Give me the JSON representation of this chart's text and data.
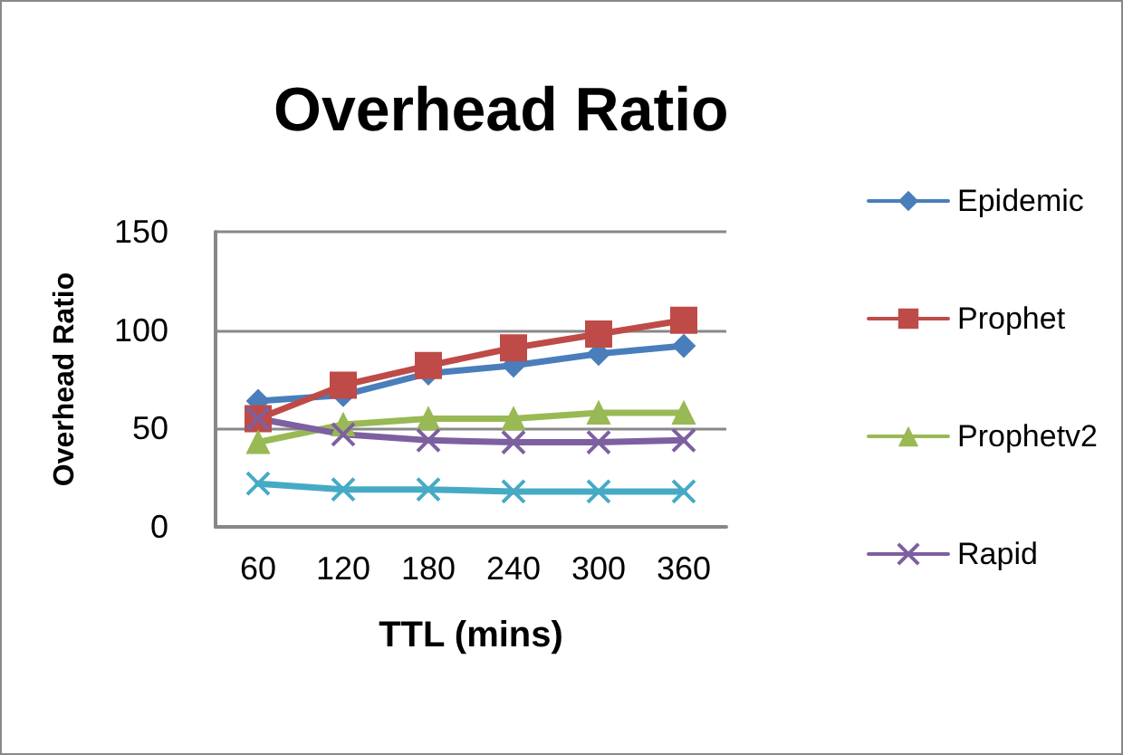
{
  "chart_data": {
    "type": "line",
    "title": "Overhead Ratio",
    "xlabel": "TTL (mins)",
    "ylabel": "Overhead Ratio",
    "categories": [
      "60",
      "120",
      "180",
      "240",
      "300",
      "360"
    ],
    "series": [
      {
        "name": "Epidemic",
        "color": "#4a7ebb",
        "marker": "diamond",
        "values": [
          64,
          67,
          78,
          82,
          88,
          92
        ]
      },
      {
        "name": "Prophet",
        "color": "#be4b48",
        "marker": "square",
        "values": [
          55,
          72,
          82,
          91,
          98,
          105
        ]
      },
      {
        "name": "Prophetv2",
        "color": "#98b954",
        "marker": "triangle",
        "values": [
          43,
          52,
          55,
          55,
          58,
          58
        ]
      },
      {
        "name": "Rapid",
        "color": "#7d60a0",
        "marker": "cross",
        "values": [
          55,
          47,
          44,
          43,
          43,
          44
        ]
      },
      {
        "color": "#46aac5",
        "marker": "cross",
        "values": [
          22,
          19,
          19,
          18,
          18,
          18
        ]
      }
    ],
    "ylim": [
      0,
      150
    ],
    "yticks": [
      0,
      50,
      100,
      150
    ],
    "grid": "y",
    "legend": "right"
  }
}
